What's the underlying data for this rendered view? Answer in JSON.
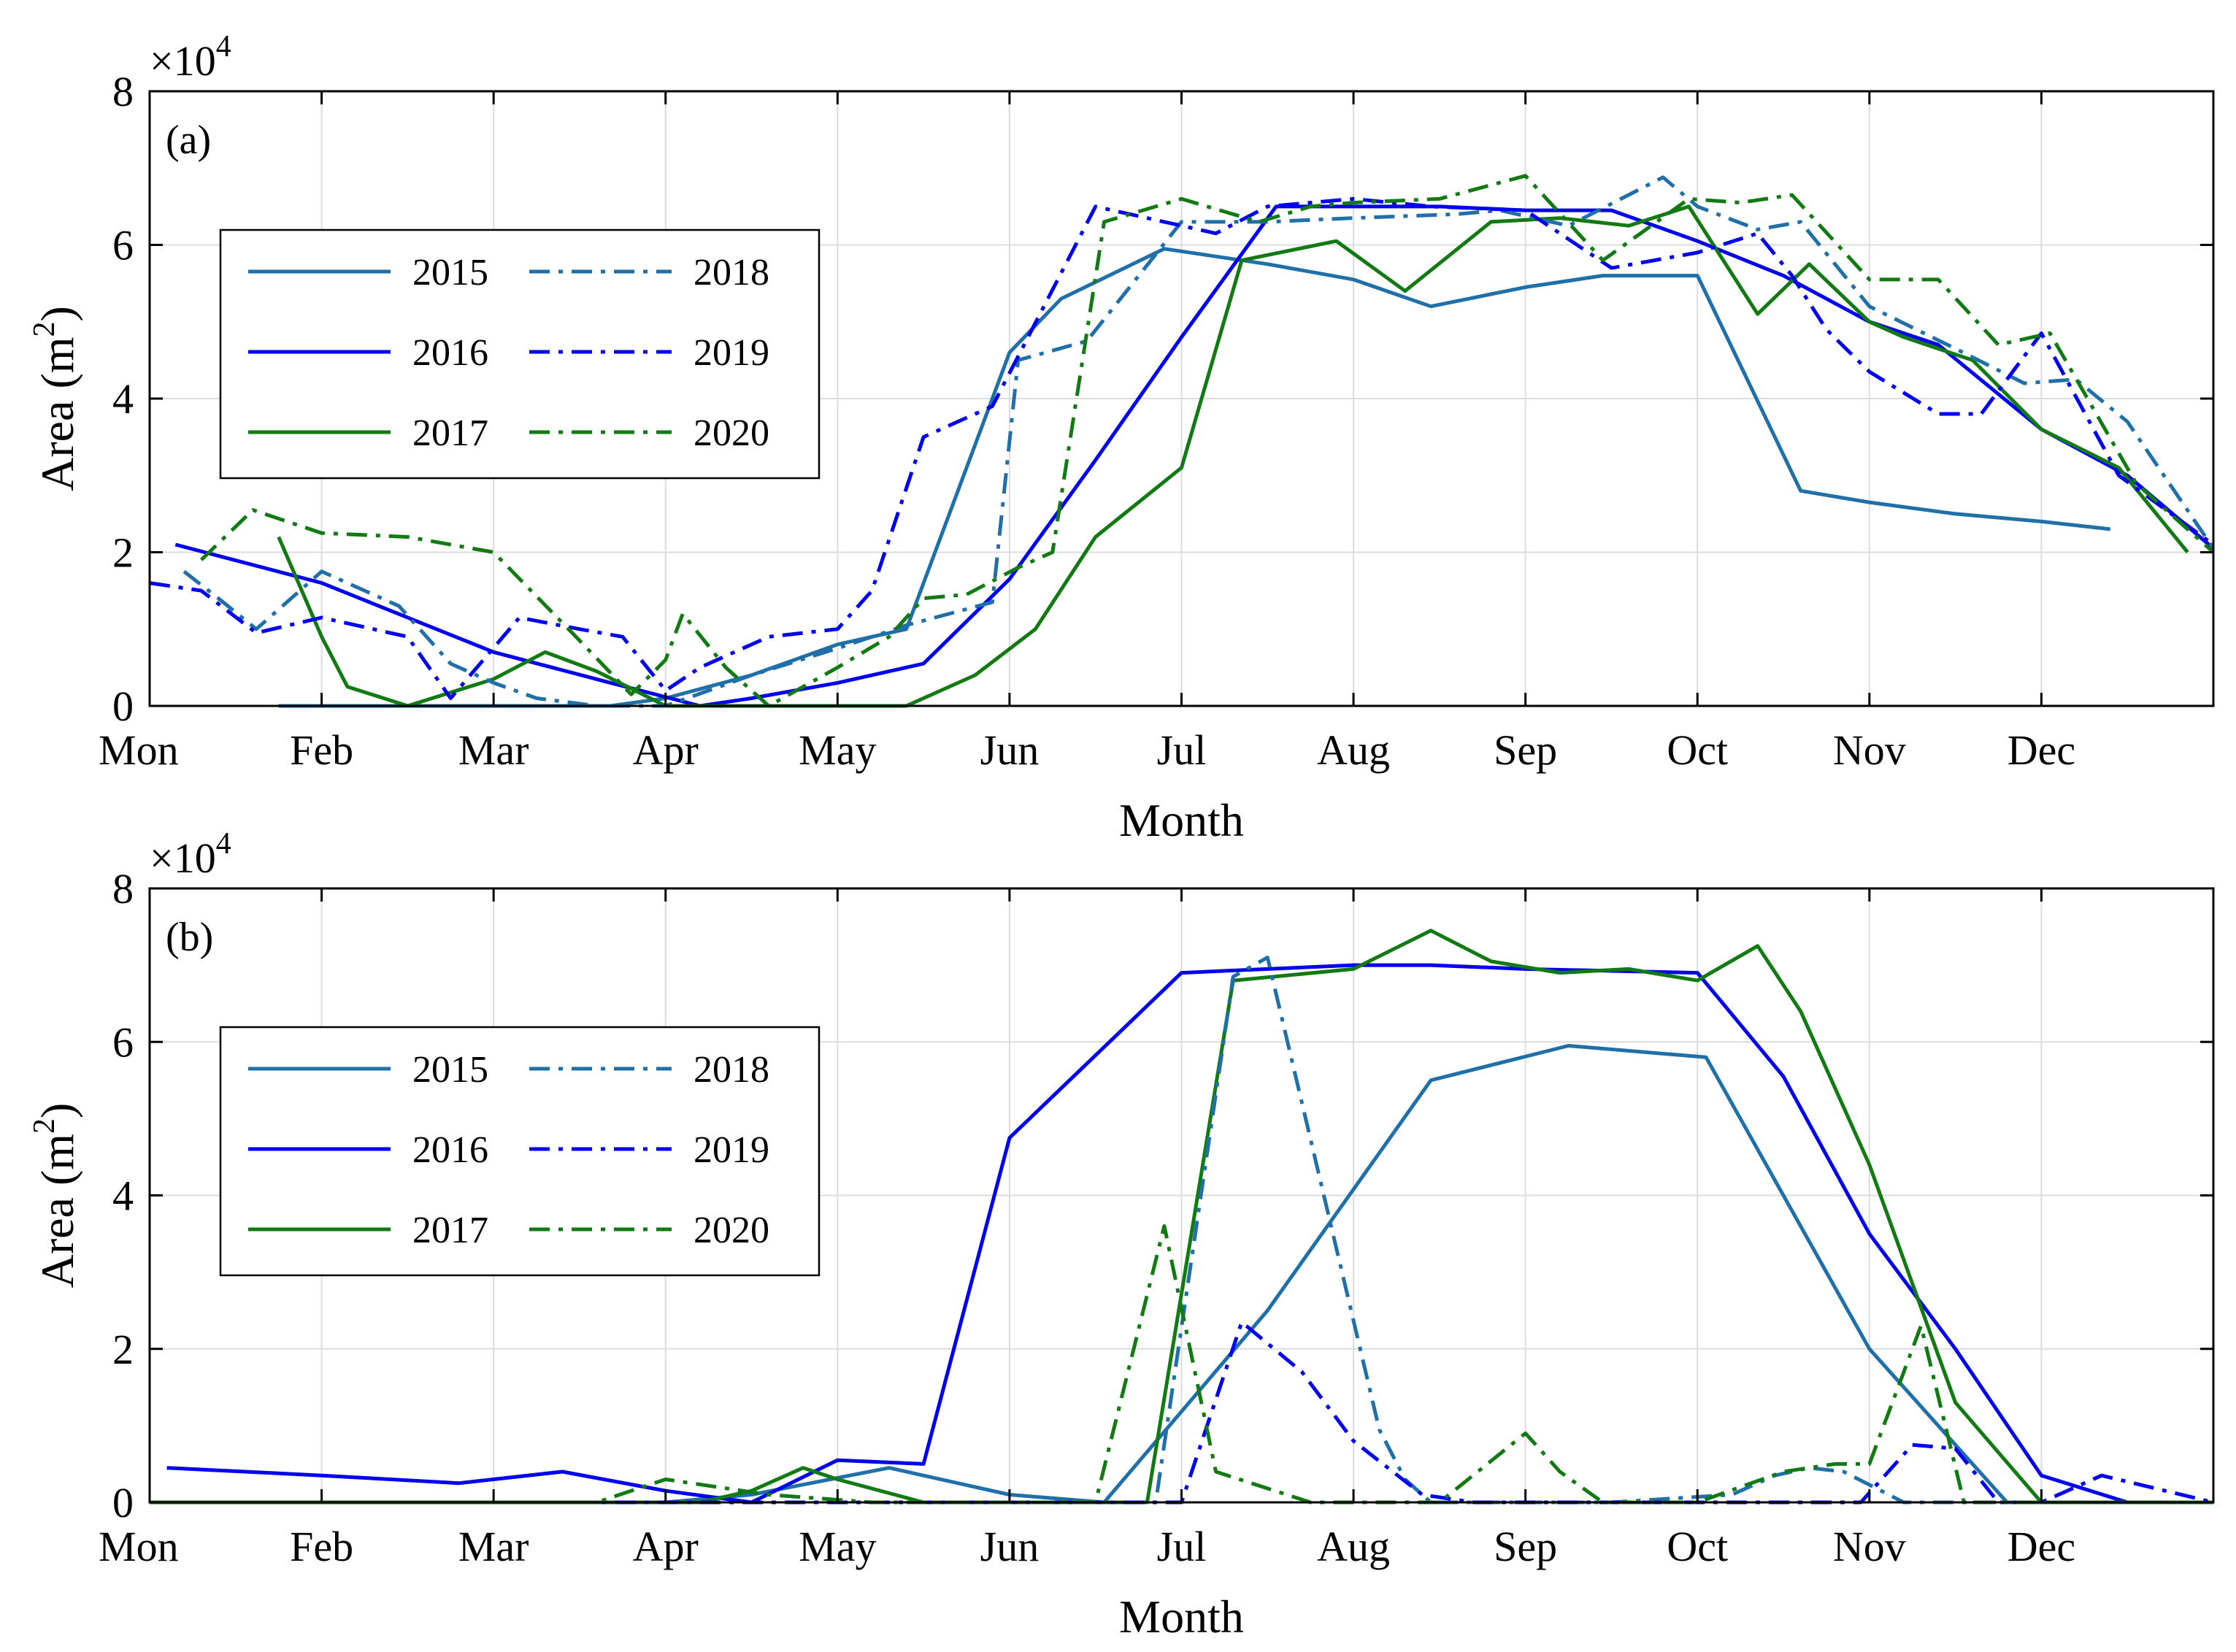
{
  "chart_data": [
    {
      "type": "line",
      "panel_label": "(a)",
      "xlabel": "Month",
      "ylabel": "Area (m",
      "ylabel_sup": "2",
      "ylabel_end": ")",
      "exponent_base": "×10",
      "exponent_power": "4",
      "x_tick_labels": [
        "Mon",
        "Feb",
        "Mar",
        "Apr",
        "May",
        "Jun",
        "Jul",
        "Aug",
        "Sep",
        "Oct",
        "Nov",
        "Dec"
      ],
      "xlim": [
        0,
        12
      ],
      "ylim": [
        0,
        8
      ],
      "y_ticks": [
        0,
        2,
        4,
        6,
        8
      ],
      "grid": true,
      "legend_position": "upper-left",
      "series": [
        {
          "name": "2015",
          "color": "#1f6fa8",
          "dash": "solid",
          "x": [
            0.75,
            1.0,
            1.5,
            2.0,
            2.5,
            2.68,
            3.0,
            3.5,
            4.0,
            4.4,
            5.0,
            5.3,
            5.9,
            6.5,
            7.0,
            7.45,
            8.0,
            8.45,
            9.0,
            9.6,
            10.0,
            10.5,
            11.0,
            11.4
          ],
          "y": [
            0,
            0,
            0,
            0,
            0,
            0,
            0.1,
            0.4,
            0.8,
            1.0,
            4.6,
            5.3,
            5.95,
            5.75,
            5.55,
            5.2,
            5.45,
            5.6,
            5.6,
            2.8,
            2.65,
            2.5,
            2.4,
            2.3
          ]
        },
        {
          "name": "2016",
          "color": "#0000ee",
          "dash": "solid",
          "x": [
            0.15,
            1.0,
            2.0,
            2.68,
            3.2,
            3.5,
            4.0,
            4.5,
            5.0,
            5.5,
            6.0,
            6.55,
            7.0,
            7.5,
            8.0,
            8.5,
            9.0,
            9.5,
            10.0,
            10.4,
            11.0,
            11.5,
            12.0
          ],
          "y": [
            2.1,
            1.6,
            0.7,
            0.3,
            0,
            0.1,
            0.3,
            0.55,
            1.65,
            3.2,
            4.8,
            6.5,
            6.5,
            6.5,
            6.45,
            6.45,
            6.05,
            5.6,
            5.0,
            4.7,
            3.6,
            3.0,
            2.05
          ]
        },
        {
          "name": "2017",
          "color": "#127a12",
          "dash": "solid",
          "x": [
            0.75,
            1.0,
            1.15,
            1.5,
            2.0,
            2.3,
            2.6,
            3.0,
            3.6,
            4.0,
            4.4,
            4.8,
            5.15,
            5.5,
            6.0,
            6.35,
            6.9,
            7.3,
            7.8,
            8.2,
            8.6,
            8.95,
            9.35,
            9.65,
            10.0,
            10.2,
            10.6,
            11.0,
            11.45,
            11.85
          ],
          "y": [
            2.2,
            0.9,
            0.25,
            0,
            0.35,
            0.7,
            0.45,
            0,
            0,
            0,
            0,
            0.4,
            1.0,
            2.2,
            3.1,
            5.8,
            6.05,
            5.4,
            6.3,
            6.35,
            6.25,
            6.5,
            5.1,
            5.75,
            5.0,
            4.8,
            4.5,
            3.6,
            3.1,
            2.0
          ]
        },
        {
          "name": "2018",
          "color": "#1f6fa8",
          "dash": "dashdot",
          "x": [
            0.2,
            0.4,
            0.62,
            1.0,
            1.45,
            1.75,
            2.0,
            2.25,
            2.6,
            3.0,
            3.5,
            4.0,
            4.4,
            4.9,
            5.05,
            5.45,
            6.0,
            6.5,
            7.0,
            7.6,
            7.85,
            8.25,
            8.8,
            9.0,
            9.35,
            9.6,
            10.0,
            10.5,
            10.9,
            11.2,
            11.5,
            12.0
          ],
          "y": [
            1.75,
            1.4,
            1.0,
            1.75,
            1.3,
            0.55,
            0.3,
            0.1,
            0,
            0,
            0.4,
            0.75,
            1.05,
            1.35,
            4.5,
            4.75,
            6.3,
            6.3,
            6.35,
            6.4,
            6.45,
            6.25,
            6.88,
            6.5,
            6.2,
            6.3,
            5.2,
            4.65,
            4.2,
            4.25,
            3.7,
            2.05
          ]
        },
        {
          "name": "2019",
          "color": "#0000ee",
          "dash": "dashdot",
          "x": [
            0.0,
            0.3,
            0.62,
            1.0,
            1.5,
            1.75,
            2.15,
            2.5,
            2.75,
            3.0,
            3.2,
            3.6,
            4.0,
            4.2,
            4.5,
            4.9,
            5.5,
            6.2,
            6.5,
            7.0,
            7.45,
            8.0,
            8.5,
            9.0,
            9.35,
            9.55,
            9.75,
            10.0,
            10.4,
            10.65,
            11.0,
            11.45,
            12.0
          ],
          "y": [
            1.6,
            1.5,
            0.95,
            1.15,
            0.9,
            0.1,
            1.15,
            1.0,
            0.9,
            0.2,
            0.5,
            0.9,
            1.0,
            1.5,
            3.5,
            3.9,
            6.5,
            6.15,
            6.5,
            6.6,
            6.5,
            6.45,
            5.7,
            5.9,
            6.15,
            5.6,
            4.9,
            4.35,
            3.8,
            3.8,
            4.85,
            3.0,
            2.1
          ]
        },
        {
          "name": "2020",
          "color": "#127a12",
          "dash": "dashdot",
          "x": [
            0.3,
            0.6,
            1.0,
            1.5,
            2.0,
            2.5,
            2.8,
            3.0,
            3.1,
            3.35,
            3.6,
            4.0,
            4.3,
            4.5,
            4.75,
            5.05,
            5.25,
            5.55,
            6.0,
            6.45,
            6.75,
            7.0,
            7.5,
            8.0,
            8.45,
            8.95,
            9.25,
            9.55,
            10.0,
            10.4,
            10.75,
            11.05,
            11.55,
            12.0
          ],
          "y": [
            1.9,
            2.55,
            2.25,
            2.2,
            2.0,
            0.85,
            0.15,
            0.6,
            1.2,
            0.5,
            0,
            0.5,
            0.9,
            1.4,
            1.45,
            1.8,
            2.0,
            6.3,
            6.6,
            6.3,
            6.5,
            6.55,
            6.6,
            6.9,
            5.8,
            6.6,
            6.55,
            6.65,
            5.55,
            5.55,
            4.7,
            4.85,
            2.9,
            2.0
          ]
        }
      ]
    },
    {
      "type": "line",
      "panel_label": "(b)",
      "xlabel": "Month",
      "ylabel": "Area (m",
      "ylabel_sup": "2",
      "ylabel_end": ")",
      "exponent_base": "×10",
      "exponent_power": "4",
      "x_tick_labels": [
        "Mon",
        "Feb",
        "Mar",
        "Apr",
        "May",
        "Jun",
        "Jul",
        "Aug",
        "Sep",
        "Oct",
        "Nov",
        "Dec"
      ],
      "xlim": [
        0,
        12
      ],
      "ylim": [
        0,
        8
      ],
      "y_ticks": [
        0,
        2,
        4,
        6,
        8
      ],
      "grid": true,
      "legend_position": "upper-left",
      "series": [
        {
          "name": "2015",
          "color": "#1f6fa8",
          "dash": "solid",
          "x": [
            0.0,
            3.0,
            3.5,
            4.3,
            5.0,
            5.55,
            6.5,
            7.45,
            8.25,
            9.05,
            10.0,
            10.2,
            10.8,
            11.5,
            12.0
          ],
          "y": [
            0,
            0,
            0.1,
            0.45,
            0.1,
            0,
            2.5,
            5.5,
            5.95,
            5.8,
            2.0,
            1.5,
            0,
            0,
            0
          ]
        },
        {
          "name": "2016",
          "color": "#0000ee",
          "dash": "solid",
          "x": [
            0.1,
            1.0,
            1.8,
            2.4,
            3.0,
            3.5,
            4.0,
            4.5,
            5.0,
            6.0,
            6.5,
            7.0,
            7.45,
            8.0,
            9.0,
            9.5,
            10.0,
            10.5,
            11.0,
            11.5,
            12.0
          ],
          "y": [
            0.45,
            0.35,
            0.25,
            0.4,
            0.15,
            0,
            0.55,
            0.5,
            4.75,
            6.9,
            6.95,
            7.0,
            7.0,
            6.95,
            6.9,
            5.55,
            3.5,
            2.0,
            0.35,
            0,
            0
          ]
        },
        {
          "name": "2017",
          "color": "#127a12",
          "dash": "solid",
          "x": [
            0.0,
            3.2,
            3.5,
            3.8,
            4.0,
            4.5,
            5.0,
            5.5,
            5.8,
            6.3,
            7.0,
            7.45,
            7.8,
            8.2,
            8.6,
            9.0,
            9.35,
            9.6,
            10.0,
            10.5,
            11.0,
            11.5,
            12.0
          ],
          "y": [
            0,
            0,
            0.15,
            0.45,
            0.3,
            0,
            0,
            0,
            0,
            6.8,
            6.95,
            7.45,
            7.05,
            6.9,
            6.95,
            6.8,
            7.25,
            6.4,
            4.4,
            1.3,
            0,
            0,
            0
          ]
        },
        {
          "name": "2018",
          "color": "#1f6fa8",
          "dash": "dashdot",
          "x": [
            0.0,
            5.0,
            5.5,
            5.85,
            6.3,
            6.5,
            7.15,
            7.3,
            7.45,
            8.0,
            8.5,
            9.2,
            9.45,
            9.65,
            9.85,
            10.2,
            10.5,
            11.0,
            11.5,
            12.0
          ],
          "y": [
            0,
            0,
            0,
            0,
            6.85,
            7.1,
            0.95,
            0.3,
            0,
            0,
            0,
            0.1,
            0.35,
            0.45,
            0.4,
            0,
            0,
            0,
            0,
            0
          ]
        },
        {
          "name": "2019",
          "color": "#0000ee",
          "dash": "dashdot",
          "x": [
            0.0,
            5.0,
            5.5,
            6.0,
            6.35,
            6.7,
            7.0,
            7.4,
            7.7,
            8.0,
            9.0,
            9.95,
            10.25,
            10.5,
            10.75,
            11.0,
            11.35,
            12.0
          ],
          "y": [
            0,
            0,
            0,
            0,
            2.35,
            1.7,
            0.8,
            0.1,
            0,
            0,
            0,
            0,
            0.75,
            0.7,
            0,
            0,
            0.35,
            0
          ]
        },
        {
          "name": "2020",
          "color": "#127a12",
          "dash": "dashdot",
          "x": [
            0.0,
            2.6,
            3.0,
            3.3,
            3.6,
            4.2,
            5.0,
            5.5,
            5.9,
            6.2,
            6.75,
            7.0,
            7.5,
            8.0,
            8.2,
            8.45,
            9.0,
            9.5,
            9.8,
            10.0,
            10.3,
            10.55,
            11.0,
            12.0
          ],
          "y": [
            0,
            0,
            0.3,
            0.2,
            0.1,
            0,
            0,
            0,
            3.6,
            0.4,
            0,
            0,
            0,
            0.9,
            0.4,
            0,
            0,
            0.4,
            0.5,
            0.5,
            2.3,
            0,
            0,
            0
          ]
        }
      ]
    }
  ]
}
